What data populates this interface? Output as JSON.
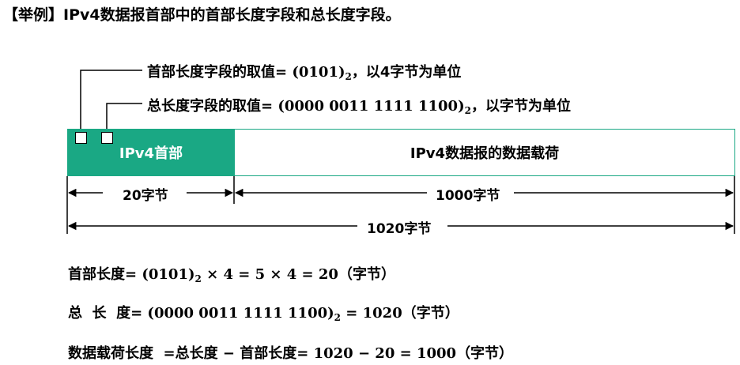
{
  "title": "【举例】IPv4数据报首部中的首部长度字段和总长度字段。",
  "annotations": {
    "header_len": {
      "prefix": "首部长度字段的取值= ",
      "value": "(0101)",
      "base": "2",
      "suffix": "，以4字节为单位"
    },
    "total_len": {
      "prefix": "总长度字段的取值= ",
      "value": "(0000 0011 1111 1100)",
      "base": "2",
      "suffix": "，以字节为单位"
    }
  },
  "diagram": {
    "header_label": "IPv4首部",
    "payload_label": "IPv4数据报的数据载荷",
    "header_color": "#1aa884"
  },
  "dimensions": {
    "header": "20字节",
    "payload": "1000字节",
    "total": "1020字节"
  },
  "formulas": {
    "f1": {
      "label": "首部长度= ",
      "value": "(0101)",
      "base": "2",
      "rest": " × 4 = 5 × 4 = 20",
      "unit": "（字节）"
    },
    "f2": {
      "label": "总  长  度= ",
      "value": "(0000 0011 1111 1100)",
      "base": "2",
      "rest": " = 1020",
      "unit": "（字节）"
    },
    "f3": {
      "label": "数据载荷长度  =总长度 − 首部长度= ",
      "rest": "1020 − 20 = 1000",
      "unit": "（字节）"
    }
  }
}
